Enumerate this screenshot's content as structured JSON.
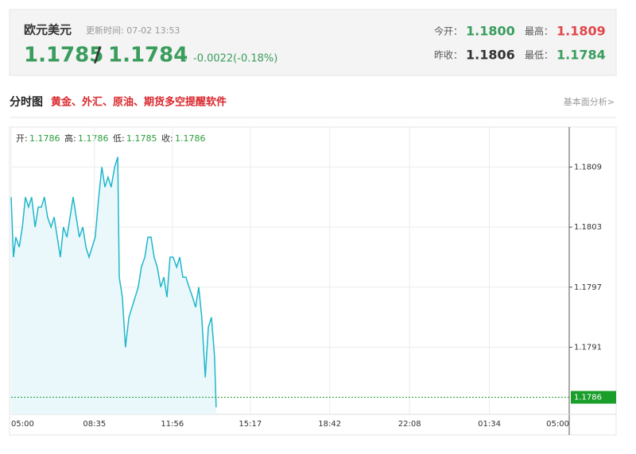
{
  "header": {
    "name": "欧元美元",
    "updated": "更新时间: 07-02 13:53",
    "bid": "1.1785",
    "slash": "/",
    "ask": "1.1784",
    "arrow": "↓",
    "change": "-0.0022(-0.18%)",
    "stats": [
      {
        "label": "今开：",
        "value": "1.1800",
        "color": "#3a9d5d"
      },
      {
        "label": "最高：",
        "value": "1.1809",
        "color": "#e0474c"
      },
      {
        "label": "昨收：",
        "value": "1.1806",
        "color": "#333333"
      },
      {
        "label": "最低：",
        "value": "1.1784",
        "color": "#3a9d5d"
      }
    ]
  },
  "section": {
    "title": "分时图",
    "promo": "黄金、外汇、原油、期货多空提醒软件",
    "link": "基本面分析>"
  },
  "chart_data": {
    "type": "line",
    "info": [
      {
        "label": "开:",
        "value": "1.1786"
      },
      {
        "label": "高:",
        "value": "1.1786"
      },
      {
        "label": "低:",
        "value": "1.1785"
      },
      {
        "label": "收:",
        "value": "1.1786"
      }
    ],
    "x": [
      0,
      6,
      12,
      21,
      29,
      37,
      45,
      53,
      62,
      70,
      78,
      86,
      94,
      103,
      111,
      119,
      127,
      135,
      144,
      152,
      160,
      168,
      176,
      185,
      193,
      201,
      209,
      217,
      226,
      234,
      242,
      250,
      258,
      267,
      275,
      279,
      287,
      295,
      304,
      312,
      320,
      328,
      336,
      345,
      353,
      361,
      369,
      377,
      386,
      394,
      402,
      410,
      418,
      427,
      435,
      443,
      451,
      459,
      468,
      476,
      484,
      492,
      501,
      509,
      517,
      525,
      529
    ],
    "series": [
      {
        "color": "#1fb6cc",
        "values": [
          1.1806,
          1.18,
          1.1802,
          1.1801,
          1.1803,
          1.1806,
          1.1805,
          1.1806,
          1.1803,
          1.1805,
          1.1805,
          1.1806,
          1.1804,
          1.1803,
          1.1804,
          1.1802,
          1.18,
          1.1803,
          1.1802,
          1.1804,
          1.1806,
          1.1804,
          1.1802,
          1.1803,
          1.1801,
          1.18,
          1.1801,
          1.1802,
          1.1806,
          1.1809,
          1.1807,
          1.1808,
          1.1807,
          1.1809,
          1.181,
          1.1798,
          1.1796,
          1.1791,
          1.1794,
          1.1795,
          1.1796,
          1.1797,
          1.1799,
          1.18,
          1.1802,
          1.1802,
          1.18,
          1.1799,
          1.1797,
          1.1798,
          1.1796,
          1.18,
          1.18,
          1.1799,
          1.18,
          1.1798,
          1.1798,
          1.1797,
          1.1796,
          1.1795,
          1.1797,
          1.1794,
          1.1788,
          1.1793,
          1.1794,
          1.179,
          1.1785
        ]
      }
    ],
    "last": 1.1786,
    "last_color": "#1a9e2a",
    "xlim": [
      0,
      1440
    ],
    "xticks": [
      {
        "value": 0,
        "label": "05:00"
      },
      {
        "value": 215,
        "label": "08:35"
      },
      {
        "value": 416,
        "label": "11:56"
      },
      {
        "value": 617,
        "label": "15:17"
      },
      {
        "value": 822,
        "label": "18:42"
      },
      {
        "value": 1028,
        "label": "22:08"
      },
      {
        "value": 1234,
        "label": "01:34"
      },
      {
        "value": 1440,
        "label": "05:00"
      }
    ],
    "ylim": [
      1.17843,
      1.1813
    ],
    "yticks": [
      1.1809,
      1.1803,
      1.1797,
      1.1791
    ],
    "grid": true
  }
}
